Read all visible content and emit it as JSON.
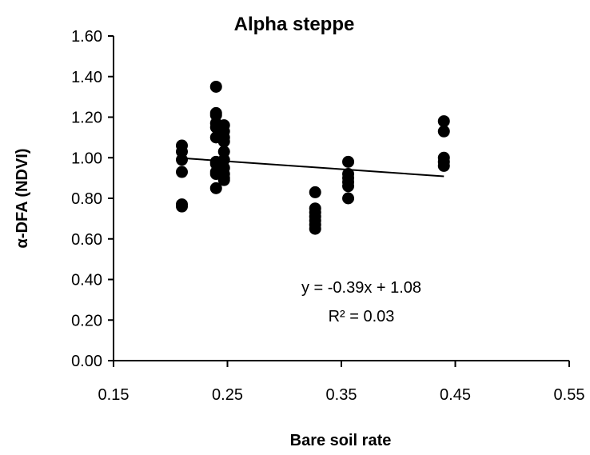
{
  "chart_data": {
    "type": "scatter",
    "title": "Alpha steppe",
    "xlabel": "Bare soil rate",
    "ylabel": "α-DFA (NDVI)",
    "xlim": [
      0.15,
      0.55
    ],
    "ylim": [
      0.0,
      1.6
    ],
    "x_ticks": [
      "0.15",
      "0.25",
      "0.35",
      "0.45",
      "0.55"
    ],
    "y_ticks": [
      "0.00",
      "0.20",
      "0.40",
      "0.60",
      "0.80",
      "1.00",
      "1.20",
      "1.40",
      "1.60"
    ],
    "x_tick_values": [
      0.15,
      0.25,
      0.35,
      0.45,
      0.55
    ],
    "y_tick_values": [
      0,
      0.2,
      0.4,
      0.6,
      0.8,
      1.0,
      1.2,
      1.4,
      1.6
    ],
    "grid": false,
    "legend": "none",
    "marker_color": "#000000",
    "points": [
      {
        "x": 0.21,
        "y": 1.06
      },
      {
        "x": 0.21,
        "y": 1.03
      },
      {
        "x": 0.21,
        "y": 0.99
      },
      {
        "x": 0.21,
        "y": 0.93
      },
      {
        "x": 0.21,
        "y": 0.77
      },
      {
        "x": 0.21,
        "y": 0.76
      },
      {
        "x": 0.24,
        "y": 1.35
      },
      {
        "x": 0.24,
        "y": 1.22
      },
      {
        "x": 0.24,
        "y": 1.21
      },
      {
        "x": 0.24,
        "y": 1.17
      },
      {
        "x": 0.24,
        "y": 1.15
      },
      {
        "x": 0.24,
        "y": 1.1
      },
      {
        "x": 0.24,
        "y": 0.98
      },
      {
        "x": 0.24,
        "y": 0.97
      },
      {
        "x": 0.24,
        "y": 0.93
      },
      {
        "x": 0.24,
        "y": 0.92
      },
      {
        "x": 0.24,
        "y": 0.85
      },
      {
        "x": 0.247,
        "y": 1.16
      },
      {
        "x": 0.247,
        "y": 1.13
      },
      {
        "x": 0.247,
        "y": 1.1
      },
      {
        "x": 0.247,
        "y": 1.08
      },
      {
        "x": 0.247,
        "y": 1.03
      },
      {
        "x": 0.247,
        "y": 0.99
      },
      {
        "x": 0.247,
        "y": 0.95
      },
      {
        "x": 0.247,
        "y": 0.92
      },
      {
        "x": 0.247,
        "y": 0.9
      },
      {
        "x": 0.247,
        "y": 0.89
      },
      {
        "x": 0.327,
        "y": 0.83
      },
      {
        "x": 0.327,
        "y": 0.75
      },
      {
        "x": 0.327,
        "y": 0.73
      },
      {
        "x": 0.327,
        "y": 0.71
      },
      {
        "x": 0.327,
        "y": 0.69
      },
      {
        "x": 0.327,
        "y": 0.67
      },
      {
        "x": 0.327,
        "y": 0.65
      },
      {
        "x": 0.356,
        "y": 0.98
      },
      {
        "x": 0.356,
        "y": 0.92
      },
      {
        "x": 0.356,
        "y": 0.9
      },
      {
        "x": 0.356,
        "y": 0.88
      },
      {
        "x": 0.356,
        "y": 0.86
      },
      {
        "x": 0.356,
        "y": 0.8
      },
      {
        "x": 0.44,
        "y": 1.18
      },
      {
        "x": 0.44,
        "y": 1.13
      },
      {
        "x": 0.44,
        "y": 1.0
      },
      {
        "x": 0.44,
        "y": 0.98
      },
      {
        "x": 0.44,
        "y": 0.96
      }
    ],
    "trendline": {
      "slope": -0.39,
      "intercept": 1.08,
      "x_range": [
        0.21,
        0.44
      ]
    },
    "annotations": [
      "y = -0.39x + 1.08",
      "R² = 0.03"
    ]
  }
}
